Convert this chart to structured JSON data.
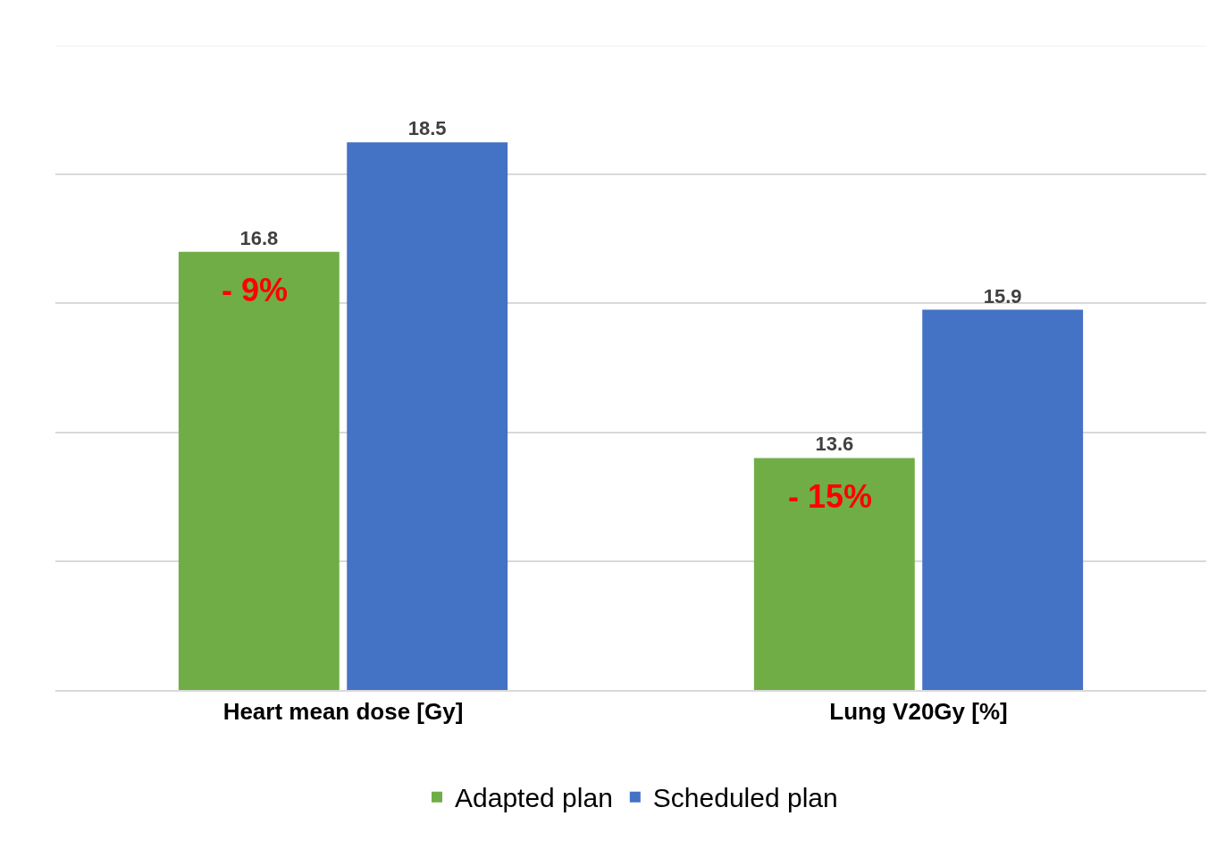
{
  "chart_data": {
    "type": "bar",
    "categories": [
      "Heart mean dose [Gy]",
      "Lung V20Gy [%]"
    ],
    "series": [
      {
        "name": "Adapted plan",
        "color": "#70ad47",
        "values": [
          16.8,
          13.6
        ]
      },
      {
        "name": "Scheduled plan",
        "color": "#4472c4",
        "values": [
          18.5,
          15.9
        ]
      }
    ],
    "ylim": [
      10,
      20
    ],
    "grid": "y",
    "tick_labels": "x",
    "data_labels": true,
    "legend": "bottom",
    "annotations": [
      {
        "text": "- 9%",
        "x": "Heart mean dose [Gy]",
        "y": 16.2
      },
      {
        "text": "- 15%",
        "x": "Lung V20Gy [%]",
        "y": 13.0
      }
    ]
  }
}
